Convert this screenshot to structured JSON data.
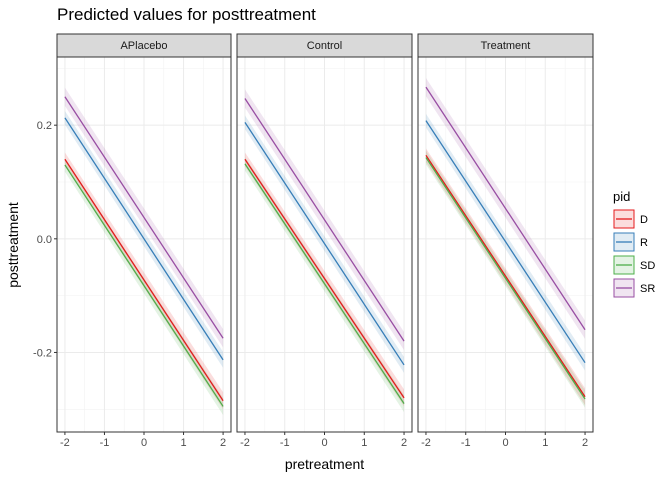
{
  "chart_data": {
    "type": "line",
    "title": "Predicted values for posttreatment",
    "xlabel": "pretreatment",
    "ylabel": "posttreatment",
    "xlim": [
      -2.2,
      2.2
    ],
    "ylim": [
      -0.34,
      0.32
    ],
    "x_ticks": [
      -2,
      -1,
      0,
      1,
      2
    ],
    "x_tick_labels": [
      "-2",
      "-1",
      "0",
      "1",
      "2"
    ],
    "y_ticks": [
      -0.2,
      0.0,
      0.2
    ],
    "y_tick_labels": [
      "-0.2",
      "0.0",
      "0.2"
    ],
    "grid": true,
    "legend_position": "right",
    "legend_title": "pid",
    "series_meta": [
      {
        "name": "D",
        "color": "#e41a1c"
      },
      {
        "name": "R",
        "color": "#377eb8"
      },
      {
        "name": "SD",
        "color": "#4daf4a"
      },
      {
        "name": "SR",
        "color": "#984ea3"
      }
    ],
    "panels": [
      {
        "label": "APlacebo",
        "series": [
          {
            "name": "D",
            "x": [
              -2,
              2
            ],
            "y": [
              0.14,
              -0.285
            ],
            "ci": [
              0.012,
              0.015
            ]
          },
          {
            "name": "R",
            "x": [
              -2,
              2
            ],
            "y": [
              0.213,
              -0.213
            ],
            "ci": [
              0.012,
              0.014
            ]
          },
          {
            "name": "SD",
            "x": [
              -2,
              2
            ],
            "y": [
              0.13,
              -0.295
            ],
            "ci": [
              0.012,
              0.015
            ]
          },
          {
            "name": "SR",
            "x": [
              -2,
              2
            ],
            "y": [
              0.25,
              -0.175
            ],
            "ci": [
              0.016,
              0.016
            ]
          }
        ]
      },
      {
        "label": "Control",
        "series": [
          {
            "name": "D",
            "x": [
              -2,
              2
            ],
            "y": [
              0.14,
              -0.28
            ],
            "ci": [
              0.012,
              0.015
            ]
          },
          {
            "name": "R",
            "x": [
              -2,
              2
            ],
            "y": [
              0.205,
              -0.222
            ],
            "ci": [
              0.012,
              0.014
            ]
          },
          {
            "name": "SD",
            "x": [
              -2,
              2
            ],
            "y": [
              0.132,
              -0.29
            ],
            "ci": [
              0.012,
              0.015
            ]
          },
          {
            "name": "SR",
            "x": [
              -2,
              2
            ],
            "y": [
              0.247,
              -0.18
            ],
            "ci": [
              0.016,
              0.016
            ]
          }
        ]
      },
      {
        "label": "Treatment",
        "series": [
          {
            "name": "D",
            "x": [
              -2,
              2
            ],
            "y": [
              0.147,
              -0.278
            ],
            "ci": [
              0.012,
              0.015
            ]
          },
          {
            "name": "R",
            "x": [
              -2,
              2
            ],
            "y": [
              0.208,
              -0.218
            ],
            "ci": [
              0.012,
              0.014
            ]
          },
          {
            "name": "SD",
            "x": [
              -2,
              2
            ],
            "y": [
              0.143,
              -0.282
            ],
            "ci": [
              0.012,
              0.015
            ]
          },
          {
            "name": "SR",
            "x": [
              -2,
              2
            ],
            "y": [
              0.267,
              -0.16
            ],
            "ci": [
              0.016,
              0.016
            ]
          }
        ]
      }
    ]
  }
}
